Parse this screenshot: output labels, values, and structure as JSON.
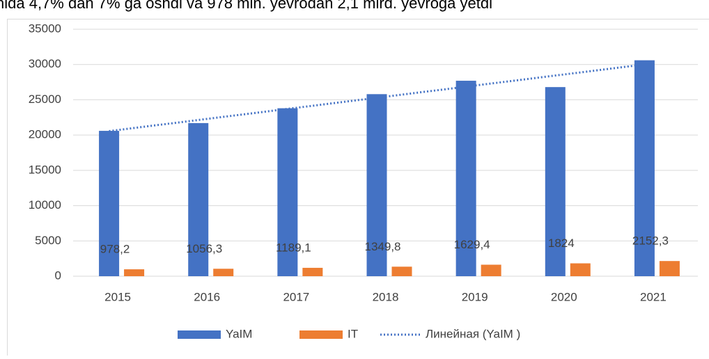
{
  "heading": "hida 4,7% dan 7% ga oshdi va 978 mln. yevrodan 2,1 mlrd. yevroga yetdi",
  "chart_data": {
    "type": "bar",
    "categories": [
      "2015",
      "2016",
      "2017",
      "2018",
      "2019",
      "2020",
      "2021"
    ],
    "series": [
      {
        "name": "YaIM",
        "color": "#4472c4",
        "values": [
          20600,
          21700,
          23800,
          25800,
          27700,
          26800,
          30600
        ]
      },
      {
        "name": "IT",
        "color": "#ed7d31",
        "values": [
          978.2,
          1056.3,
          1189.1,
          1349.8,
          1629.4,
          1824,
          2152.3
        ],
        "value_labels": [
          "978,2",
          "1056,3",
          "1189,1",
          "1349,8",
          "1629,4",
          "1824",
          "2152,3"
        ]
      }
    ],
    "trendline": {
      "name": "Линейная (YaIM )",
      "series": "YaIM",
      "color": "#4472c4",
      "style": "dotted"
    },
    "ylim": [
      0,
      35000
    ],
    "yticks": [
      0,
      5000,
      10000,
      15000,
      20000,
      25000,
      30000,
      35000
    ],
    "grid": true,
    "legend": "bottom"
  }
}
